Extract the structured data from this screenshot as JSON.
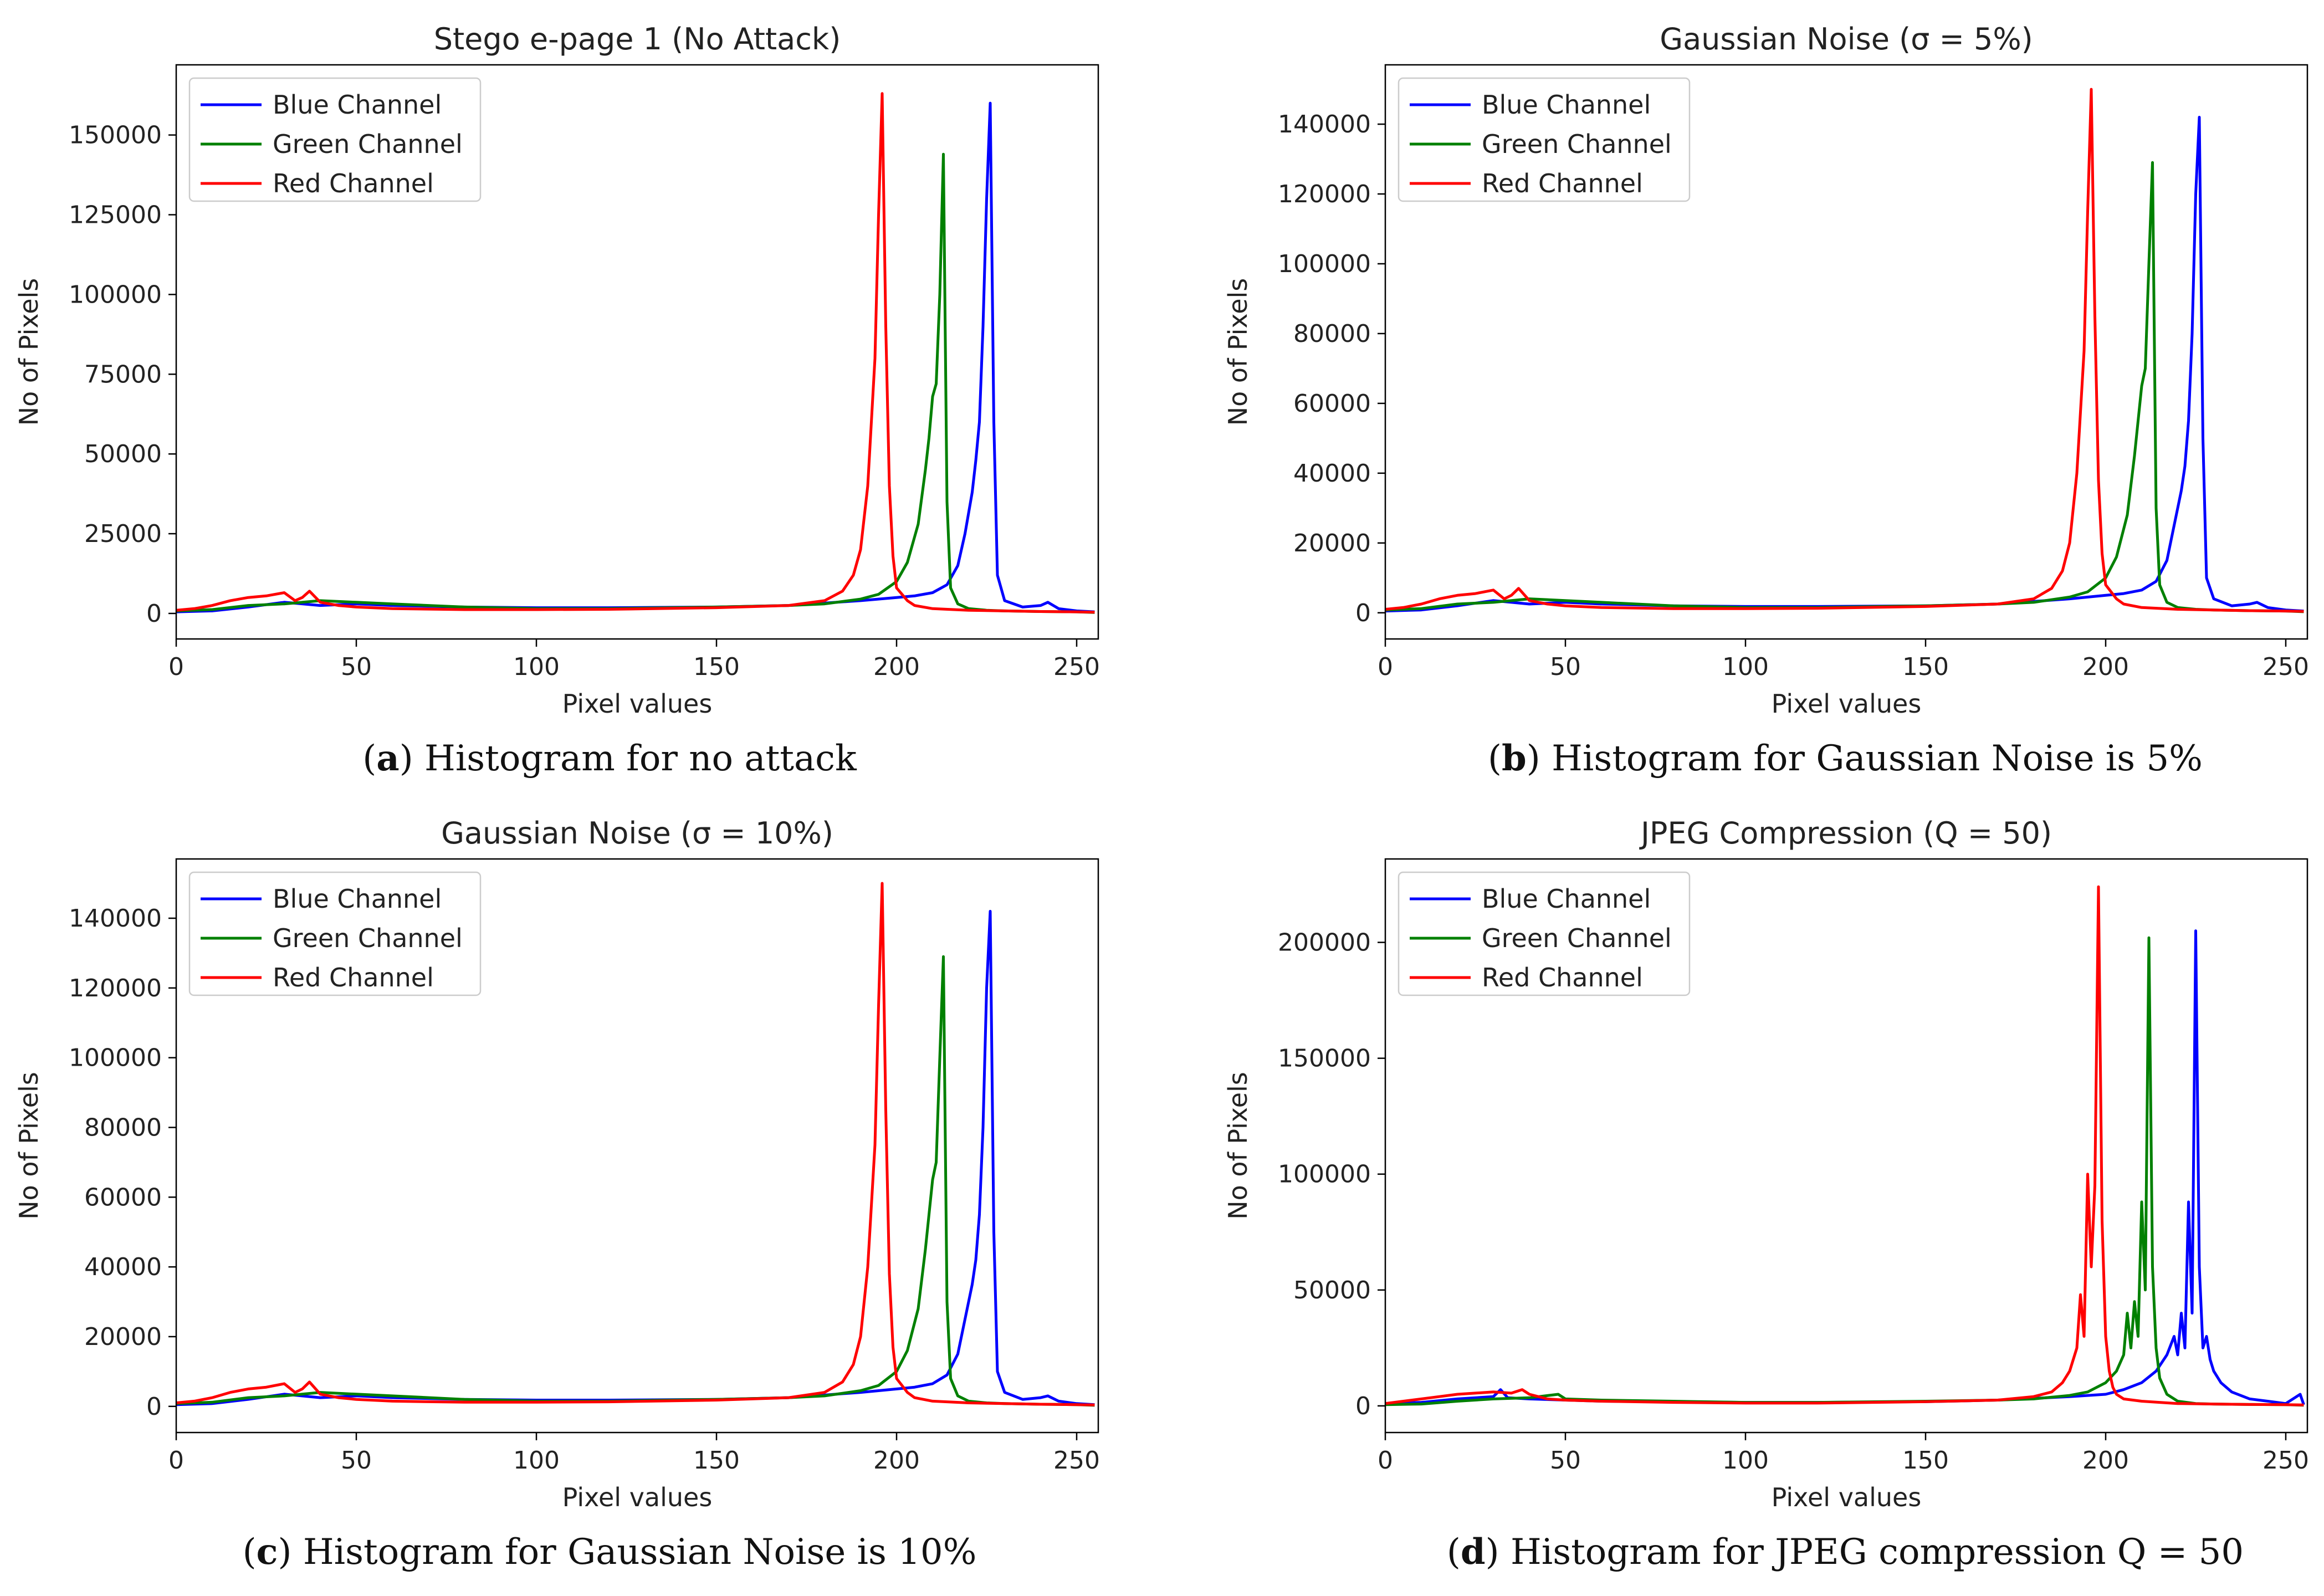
{
  "figure": {
    "panels": [
      {
        "letter": "a",
        "caption_text": " Histogram for no attack"
      },
      {
        "letter": "b",
        "caption_text": " Histogram for Gaussian Noise is 5%"
      },
      {
        "letter": "c",
        "caption_text": " Histogram for Gaussian Noise is 10%"
      },
      {
        "letter": "d",
        "caption_text": " Histogram for JPEG compression Q = 50"
      }
    ]
  },
  "chart_data": [
    {
      "type": "line",
      "title": "Stego e-page 1 (No Attack)",
      "xlabel": "Pixel values",
      "ylabel": "No of Pixels",
      "xlim": [
        0,
        256
      ],
      "ylim": [
        -8000,
        172000
      ],
      "xticks": [
        0,
        50,
        100,
        150,
        200,
        250
      ],
      "yticks": [
        0,
        25000,
        50000,
        75000,
        100000,
        125000,
        150000
      ],
      "grid": false,
      "legend_position": "upper-left",
      "series": [
        {
          "name": "Blue Channel",
          "color": "#0000ff",
          "x": [
            0,
            10,
            20,
            30,
            40,
            50,
            60,
            80,
            100,
            120,
            150,
            170,
            190,
            200,
            205,
            210,
            214,
            217,
            219,
            221,
            222,
            223,
            224,
            225,
            226,
            227,
            228,
            230,
            235,
            240,
            242,
            245,
            250,
            255
          ],
          "y": [
            500,
            800,
            2000,
            3500,
            2500,
            3000,
            2500,
            2000,
            1800,
            1800,
            2000,
            2500,
            4000,
            5000,
            5500,
            6500,
            9000,
            15000,
            25000,
            38000,
            48000,
            60000,
            90000,
            130000,
            160000,
            60000,
            12000,
            4000,
            2000,
            2500,
            3500,
            1500,
            800,
            500
          ]
        },
        {
          "name": "Green Channel",
          "color": "#008000",
          "x": [
            0,
            10,
            20,
            30,
            40,
            50,
            60,
            80,
            100,
            120,
            150,
            170,
            180,
            190,
            195,
            200,
            203,
            206,
            208,
            209,
            210,
            211,
            212,
            213,
            214,
            215,
            217,
            220,
            225,
            230,
            240,
            250,
            255
          ],
          "y": [
            800,
            1200,
            2500,
            3000,
            4000,
            3500,
            3000,
            2000,
            1500,
            1500,
            2000,
            2500,
            3000,
            4500,
            6000,
            10000,
            16000,
            28000,
            45000,
            55000,
            68000,
            72000,
            100000,
            144000,
            35000,
            8000,
            3000,
            1500,
            1000,
            800,
            600,
            500,
            300
          ]
        },
        {
          "name": "Red Channel",
          "color": "#ff0000",
          "x": [
            0,
            5,
            10,
            15,
            20,
            25,
            30,
            33,
            35,
            37,
            40,
            45,
            50,
            60,
            80,
            100,
            120,
            150,
            170,
            180,
            185,
            188,
            190,
            192,
            194,
            195,
            196,
            197,
            198,
            199,
            200,
            203,
            205,
            210,
            220,
            230,
            240,
            250,
            255
          ],
          "y": [
            1000,
            1500,
            2500,
            4000,
            5000,
            5500,
            6500,
            4000,
            5000,
            7000,
            3500,
            2500,
            2000,
            1500,
            1200,
            1200,
            1300,
            1800,
            2500,
            4000,
            7000,
            12000,
            20000,
            40000,
            80000,
            125000,
            163000,
            90000,
            40000,
            18000,
            8000,
            4000,
            2500,
            1500,
            1000,
            800,
            600,
            500,
            400
          ]
        }
      ]
    },
    {
      "type": "line",
      "title": "Gaussian Noise (σ = 5%)",
      "xlabel": "Pixel values",
      "ylabel": "No of Pixels",
      "xlim": [
        0,
        256
      ],
      "ylim": [
        -7500,
        157000
      ],
      "xticks": [
        0,
        50,
        100,
        150,
        200,
        250
      ],
      "yticks": [
        0,
        20000,
        40000,
        60000,
        80000,
        100000,
        120000,
        140000
      ],
      "grid": false,
      "legend_position": "upper-left",
      "series": [
        {
          "name": "Blue Channel",
          "color": "#0000ff",
          "x": [
            0,
            10,
            20,
            30,
            40,
            50,
            60,
            80,
            100,
            120,
            150,
            170,
            190,
            200,
            205,
            210,
            214,
            217,
            219,
            221,
            222,
            223,
            224,
            225,
            226,
            227,
            228,
            230,
            235,
            240,
            242,
            245,
            250,
            255
          ],
          "y": [
            500,
            800,
            2000,
            3500,
            2500,
            3000,
            2500,
            2000,
            1800,
            1800,
            2000,
            2500,
            4000,
            5000,
            5500,
            6500,
            9000,
            15000,
            25000,
            35000,
            42000,
            55000,
            80000,
            120000,
            142000,
            50000,
            10000,
            4000,
            2000,
            2500,
            3000,
            1500,
            800,
            500
          ]
        },
        {
          "name": "Green Channel",
          "color": "#008000",
          "x": [
            0,
            10,
            20,
            30,
            40,
            50,
            60,
            80,
            100,
            120,
            150,
            170,
            180,
            190,
            195,
            200,
            203,
            206,
            208,
            209,
            210,
            211,
            212,
            213,
            214,
            215,
            217,
            220,
            225,
            230,
            240,
            250,
            255
          ],
          "y": [
            800,
            1200,
            2500,
            3000,
            4000,
            3500,
            3000,
            2000,
            1500,
            1500,
            2000,
            2500,
            3000,
            4500,
            6000,
            10000,
            16000,
            28000,
            45000,
            55000,
            65000,
            70000,
            100000,
            129000,
            30000,
            8000,
            3000,
            1500,
            1000,
            800,
            600,
            500,
            300
          ]
        },
        {
          "name": "Red Channel",
          "color": "#ff0000",
          "x": [
            0,
            5,
            10,
            15,
            20,
            25,
            30,
            33,
            35,
            37,
            40,
            45,
            50,
            60,
            80,
            100,
            120,
            150,
            170,
            180,
            185,
            188,
            190,
            192,
            194,
            195,
            196,
            197,
            198,
            199,
            200,
            203,
            205,
            210,
            220,
            230,
            240,
            250,
            255
          ],
          "y": [
            1000,
            1500,
            2500,
            4000,
            5000,
            5500,
            6500,
            4000,
            5000,
            7000,
            3500,
            2500,
            2000,
            1500,
            1200,
            1200,
            1300,
            1800,
            2500,
            4000,
            7000,
            12000,
            20000,
            40000,
            75000,
            115000,
            150000,
            85000,
            38000,
            17000,
            8000,
            4000,
            2500,
            1500,
            1000,
            800,
            600,
            500,
            400
          ]
        }
      ]
    },
    {
      "type": "line",
      "title": "Gaussian Noise (σ = 10%)",
      "xlabel": "Pixel values",
      "ylabel": "No of Pixels",
      "xlim": [
        0,
        256
      ],
      "ylim": [
        -7500,
        157000
      ],
      "xticks": [
        0,
        50,
        100,
        150,
        200,
        250
      ],
      "yticks": [
        0,
        20000,
        40000,
        60000,
        80000,
        100000,
        120000,
        140000
      ],
      "grid": false,
      "legend_position": "upper-left",
      "series": [
        {
          "name": "Blue Channel",
          "color": "#0000ff",
          "x": [
            0,
            10,
            20,
            30,
            40,
            50,
            60,
            80,
            100,
            120,
            150,
            170,
            190,
            200,
            205,
            210,
            214,
            217,
            219,
            221,
            222,
            223,
            224,
            225,
            226,
            227,
            228,
            230,
            235,
            240,
            242,
            245,
            250,
            255
          ],
          "y": [
            500,
            800,
            2000,
            3500,
            2500,
            3000,
            2500,
            2000,
            1800,
            1800,
            2000,
            2500,
            4000,
            5000,
            5500,
            6500,
            9000,
            15000,
            25000,
            35000,
            42000,
            55000,
            80000,
            120000,
            142000,
            50000,
            10000,
            4000,
            2000,
            2500,
            3000,
            1500,
            800,
            500
          ]
        },
        {
          "name": "Green Channel",
          "color": "#008000",
          "x": [
            0,
            10,
            20,
            30,
            40,
            50,
            60,
            80,
            100,
            120,
            150,
            170,
            180,
            190,
            195,
            200,
            203,
            206,
            208,
            209,
            210,
            211,
            212,
            213,
            214,
            215,
            217,
            220,
            225,
            230,
            240,
            250,
            255
          ],
          "y": [
            800,
            1200,
            2500,
            3000,
            4000,
            3500,
            3000,
            2000,
            1500,
            1500,
            2000,
            2500,
            3000,
            4500,
            6000,
            10000,
            16000,
            28000,
            45000,
            55000,
            65000,
            70000,
            100000,
            129000,
            30000,
            8000,
            3000,
            1500,
            1000,
            800,
            600,
            500,
            300
          ]
        },
        {
          "name": "Red Channel",
          "color": "#ff0000",
          "x": [
            0,
            5,
            10,
            15,
            20,
            25,
            30,
            33,
            35,
            37,
            40,
            45,
            50,
            60,
            80,
            100,
            120,
            150,
            170,
            180,
            185,
            188,
            190,
            192,
            194,
            195,
            196,
            197,
            198,
            199,
            200,
            203,
            205,
            210,
            220,
            230,
            240,
            250,
            255
          ],
          "y": [
            1000,
            1500,
            2500,
            4000,
            5000,
            5500,
            6500,
            4000,
            5000,
            7000,
            3500,
            2500,
            2000,
            1500,
            1200,
            1200,
            1300,
            1800,
            2500,
            4000,
            7000,
            12000,
            20000,
            40000,
            75000,
            115000,
            150000,
            85000,
            38000,
            17000,
            8000,
            4000,
            2500,
            1500,
            1000,
            800,
            600,
            500,
            400
          ]
        }
      ]
    },
    {
      "type": "line",
      "title": "JPEG Compression (Q = 50)",
      "xlabel": "Pixel values",
      "ylabel": "No of Pixels",
      "xlim": [
        0,
        256
      ],
      "ylim": [
        -11500,
        236000
      ],
      "xticks": [
        0,
        50,
        100,
        150,
        200,
        250
      ],
      "yticks": [
        0,
        50000,
        100000,
        150000,
        200000
      ],
      "grid": false,
      "legend_position": "upper-left",
      "series": [
        {
          "name": "Blue Channel",
          "color": "#0000ff",
          "x": [
            0,
            10,
            20,
            30,
            32,
            34,
            40,
            50,
            60,
            80,
            100,
            120,
            150,
            170,
            190,
            200,
            205,
            210,
            214,
            217,
            219,
            220,
            221,
            222,
            223,
            224,
            225,
            226,
            227,
            228,
            229,
            230,
            232,
            235,
            240,
            245,
            250,
            254,
            255
          ],
          "y": [
            1000,
            1500,
            3000,
            4000,
            7000,
            3500,
            3000,
            2500,
            2000,
            1800,
            1500,
            1500,
            1800,
            2500,
            4000,
            5000,
            7000,
            10000,
            15000,
            22000,
            30000,
            22000,
            40000,
            25000,
            88000,
            40000,
            205000,
            60000,
            25000,
            30000,
            20000,
            15000,
            10000,
            6000,
            3000,
            2000,
            1000,
            5000,
            500
          ]
        },
        {
          "name": "Green Channel",
          "color": "#008000",
          "x": [
            0,
            10,
            20,
            30,
            40,
            48,
            50,
            60,
            80,
            100,
            120,
            150,
            170,
            180,
            190,
            195,
            200,
            203,
            205,
            206,
            207,
            208,
            209,
            210,
            211,
            212,
            213,
            214,
            215,
            217,
            220,
            225,
            230,
            240,
            250,
            255
          ],
          "y": [
            500,
            800,
            2000,
            3000,
            3500,
            5000,
            3000,
            2500,
            2000,
            1500,
            1500,
            2000,
            2500,
            3000,
            4500,
            6000,
            10000,
            15000,
            22000,
            40000,
            25000,
            45000,
            30000,
            88000,
            50000,
            202000,
            60000,
            25000,
            12000,
            5000,
            2000,
            1000,
            800,
            600,
            500,
            300
          ]
        },
        {
          "name": "Red Channel",
          "color": "#ff0000",
          "x": [
            0,
            5,
            10,
            15,
            20,
            25,
            30,
            35,
            38,
            40,
            45,
            50,
            60,
            80,
            100,
            120,
            150,
            170,
            180,
            185,
            188,
            190,
            192,
            193,
            194,
            195,
            196,
            197,
            198,
            199,
            200,
            201,
            202,
            203,
            205,
            210,
            220,
            230,
            240,
            250,
            255
          ],
          "y": [
            1000,
            2000,
            3000,
            4000,
            5000,
            5500,
            6000,
            5500,
            7000,
            5000,
            3000,
            2500,
            2000,
            1500,
            1200,
            1200,
            1800,
            2500,
            4000,
            6000,
            10000,
            15000,
            25000,
            48000,
            30000,
            100000,
            60000,
            95000,
            224000,
            80000,
            30000,
            15000,
            8000,
            5000,
            3000,
            2000,
            1000,
            800,
            600,
            500,
            400
          ]
        }
      ]
    }
  ]
}
